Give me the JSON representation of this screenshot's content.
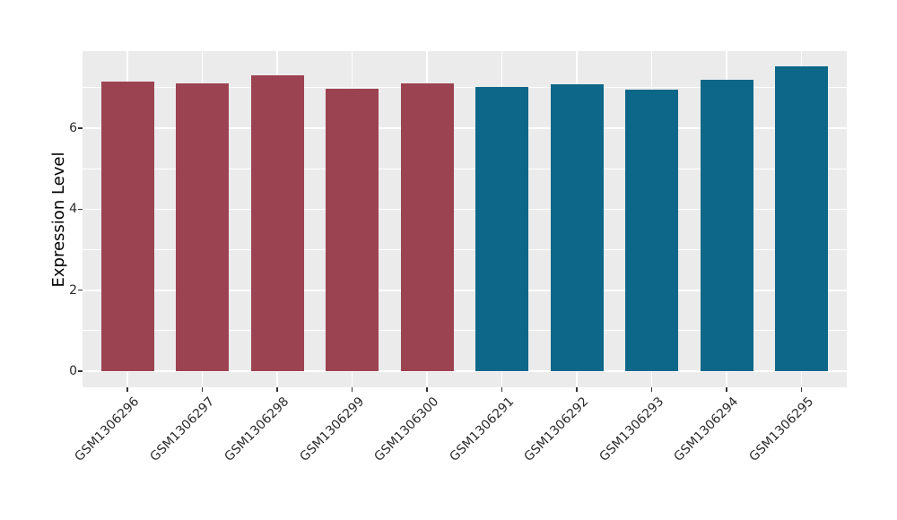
{
  "figure": {
    "background": "#FFFFFF",
    "panel_background": "#EBEBEB",
    "gridline_color": "#FFFFFF",
    "tick_color": "#333333",
    "axis_text_color": "#2b2b2b"
  },
  "chart_data": {
    "type": "bar",
    "title": "",
    "xlabel": "",
    "ylabel": "Expression Level",
    "categories": [
      "GSM1306296",
      "GSM1306297",
      "GSM1306298",
      "GSM1306299",
      "GSM1306300",
      "GSM1306291",
      "GSM1306292",
      "GSM1306293",
      "GSM1306294",
      "GSM1306295"
    ],
    "values": [
      7.15,
      7.12,
      7.3,
      6.97,
      7.11,
      7.02,
      7.09,
      6.95,
      7.2,
      7.53
    ],
    "bar_colors": [
      "#9C4351",
      "#9C4351",
      "#9C4351",
      "#9C4351",
      "#9C4351",
      "#0C6789",
      "#0C6789",
      "#0C6789",
      "#0C6789",
      "#0C6789"
    ],
    "group_colors": {
      "first_group": "#9C4351",
      "second_group": "#0C6789"
    },
    "ylim": [
      0,
      7.9
    ],
    "yticks": [
      0,
      2,
      4,
      6
    ],
    "ytick_labels": [
      "0",
      "2",
      "4",
      "6"
    ],
    "grid": "on",
    "legend": "none",
    "x_label_angle_deg": 45
  }
}
